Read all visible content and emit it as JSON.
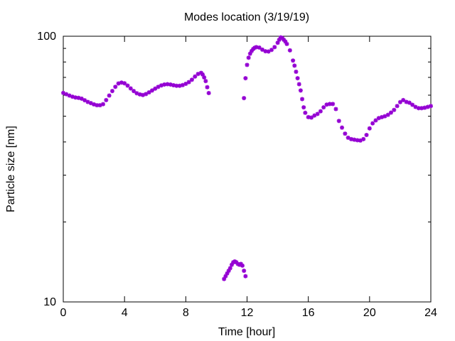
{
  "chart_data": {
    "type": "scatter",
    "title": "Modes location (3/19/19)",
    "xlabel": "Time [hour]",
    "ylabel": "Particle size [nm]",
    "xlim": [
      0,
      24
    ],
    "ylim": [
      10,
      100
    ],
    "yscale": "log",
    "xticks": [
      0,
      4,
      8,
      12,
      16,
      20,
      24
    ],
    "xtick_labels": [
      "0",
      "4",
      "8",
      "12",
      "16",
      "20",
      "24"
    ],
    "yticks": [
      10,
      100
    ],
    "ytick_labels": [
      "10",
      "100"
    ],
    "grid": false,
    "marker_color": "#9400d3",
    "series": [
      {
        "points": [
          [
            0.0,
            61.2
          ],
          [
            0.2,
            60.5
          ],
          [
            0.4,
            59.8
          ],
          [
            0.6,
            59.2
          ],
          [
            0.8,
            58.8
          ],
          [
            1.0,
            58.6
          ],
          [
            1.2,
            58.2
          ],
          [
            1.4,
            57.4
          ],
          [
            1.6,
            56.6
          ],
          [
            1.8,
            56.0
          ],
          [
            2.0,
            55.4
          ],
          [
            2.2,
            55.0
          ],
          [
            2.4,
            55.0
          ],
          [
            2.6,
            55.5
          ],
          [
            2.8,
            57.5
          ],
          [
            3.0,
            59.8
          ],
          [
            3.2,
            62.2
          ],
          [
            3.4,
            64.5
          ],
          [
            3.6,
            66.4
          ],
          [
            3.8,
            66.9
          ],
          [
            4.0,
            66.5
          ],
          [
            4.2,
            65.2
          ],
          [
            4.4,
            63.6
          ],
          [
            4.6,
            62.2
          ],
          [
            4.8,
            61.0
          ],
          [
            5.0,
            60.4
          ],
          [
            5.2,
            60.1
          ],
          [
            5.4,
            60.6
          ],
          [
            5.6,
            61.5
          ],
          [
            5.8,
            62.5
          ],
          [
            6.0,
            63.5
          ],
          [
            6.2,
            64.5
          ],
          [
            6.4,
            65.3
          ],
          [
            6.6,
            65.8
          ],
          [
            6.8,
            66.0
          ],
          [
            7.0,
            65.8
          ],
          [
            7.2,
            65.4
          ],
          [
            7.4,
            65.1
          ],
          [
            7.6,
            65.1
          ],
          [
            7.8,
            65.5
          ],
          [
            8.0,
            66.2
          ],
          [
            8.2,
            67.2
          ],
          [
            8.4,
            68.6
          ],
          [
            8.6,
            70.5
          ],
          [
            8.8,
            72.1
          ],
          [
            9.0,
            72.8
          ],
          [
            9.1,
            71.8
          ],
          [
            9.2,
            70.0
          ],
          [
            9.3,
            67.8
          ],
          [
            9.4,
            64.3
          ],
          [
            9.5,
            61.1
          ],
          [
            10.5,
            12.2
          ],
          [
            10.6,
            12.5
          ],
          [
            10.7,
            12.8
          ],
          [
            10.8,
            13.1
          ],
          [
            10.9,
            13.4
          ],
          [
            11.0,
            13.8
          ],
          [
            11.1,
            14.1
          ],
          [
            11.2,
            14.2
          ],
          [
            11.3,
            14.1
          ],
          [
            11.4,
            13.9
          ],
          [
            11.5,
            13.8
          ],
          [
            11.6,
            13.9
          ],
          [
            11.7,
            13.7
          ],
          [
            11.8,
            13.1
          ],
          [
            11.9,
            12.5
          ],
          [
            11.8,
            58.5
          ],
          [
            11.9,
            69.5
          ],
          [
            12.0,
            78.0
          ],
          [
            12.1,
            83.0
          ],
          [
            12.2,
            86.0
          ],
          [
            12.3,
            88.0
          ],
          [
            12.4,
            89.5
          ],
          [
            12.5,
            90.5
          ],
          [
            12.6,
            91.0
          ],
          [
            12.8,
            90.6
          ],
          [
            13.0,
            89.0
          ],
          [
            13.2,
            87.8
          ],
          [
            13.4,
            87.6
          ],
          [
            13.6,
            88.8
          ],
          [
            13.8,
            91.0
          ],
          [
            14.0,
            94.5
          ],
          [
            14.1,
            97.0
          ],
          [
            14.2,
            99.0
          ],
          [
            14.3,
            98.5
          ],
          [
            14.4,
            97.0
          ],
          [
            14.5,
            95.5
          ],
          [
            14.6,
            93.5
          ],
          [
            14.8,
            88.5
          ],
          [
            15.0,
            81.0
          ],
          [
            15.1,
            77.5
          ],
          [
            15.2,
            73.5
          ],
          [
            15.3,
            69.5
          ],
          [
            15.4,
            66.0
          ],
          [
            15.5,
            62.5
          ],
          [
            15.6,
            58.0
          ],
          [
            15.7,
            54.0
          ],
          [
            15.8,
            51.5
          ],
          [
            16.0,
            49.6
          ],
          [
            16.2,
            49.4
          ],
          [
            16.4,
            50.3
          ],
          [
            16.6,
            51.0
          ],
          [
            16.8,
            52.2
          ],
          [
            17.0,
            54.0
          ],
          [
            17.2,
            55.3
          ],
          [
            17.4,
            55.6
          ],
          [
            17.6,
            55.6
          ],
          [
            17.8,
            53.2
          ],
          [
            18.0,
            48.0
          ],
          [
            18.2,
            45.3
          ],
          [
            18.4,
            43.0
          ],
          [
            18.6,
            41.5
          ],
          [
            18.8,
            41.0
          ],
          [
            19.0,
            40.8
          ],
          [
            19.2,
            40.6
          ],
          [
            19.4,
            40.5
          ],
          [
            19.6,
            41.0
          ],
          [
            19.8,
            42.5
          ],
          [
            20.0,
            45.0
          ],
          [
            20.2,
            47.0
          ],
          [
            20.4,
            48.2
          ],
          [
            20.6,
            49.2
          ],
          [
            20.8,
            49.6
          ],
          [
            21.0,
            50.0
          ],
          [
            21.2,
            50.6
          ],
          [
            21.4,
            51.6
          ],
          [
            21.6,
            52.8
          ],
          [
            21.8,
            54.6
          ],
          [
            22.0,
            56.5
          ],
          [
            22.2,
            57.5
          ],
          [
            22.4,
            56.6
          ],
          [
            22.6,
            56.2
          ],
          [
            22.8,
            55.2
          ],
          [
            23.0,
            54.2
          ],
          [
            23.2,
            53.6
          ],
          [
            23.4,
            53.6
          ],
          [
            23.6,
            53.8
          ],
          [
            23.8,
            54.2
          ],
          [
            24.0,
            54.6
          ]
        ]
      }
    ]
  }
}
